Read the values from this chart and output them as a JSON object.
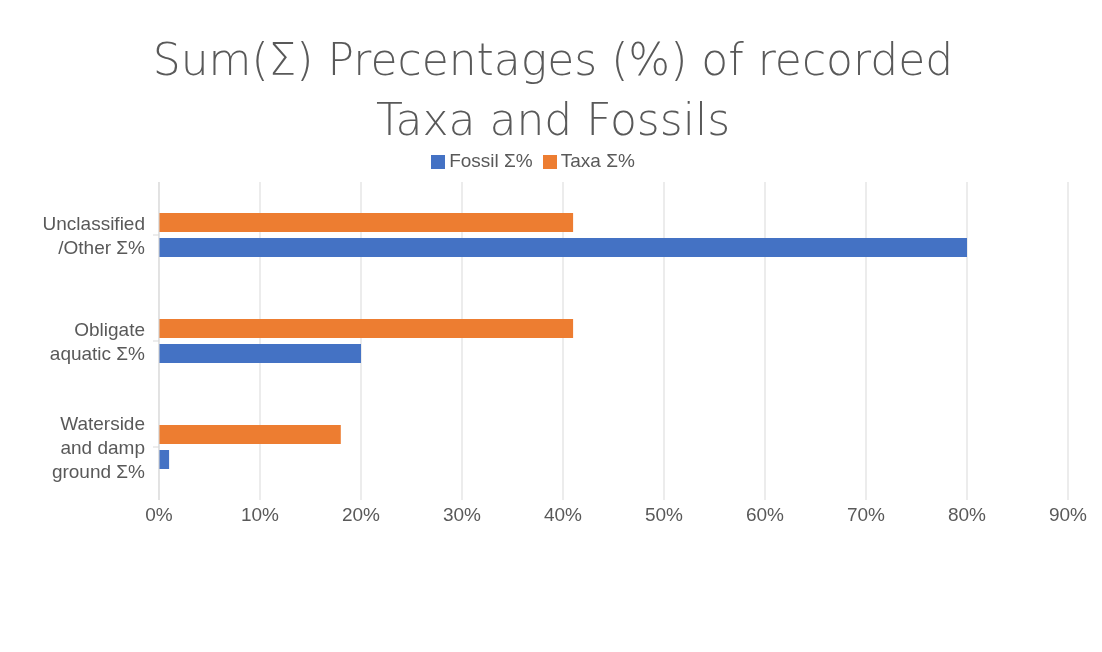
{
  "chart_data": {
    "type": "bar",
    "orientation": "horizontal",
    "title": "Sum(Σ) Precentages (%) of recorded Taxa and Fossils",
    "categories": [
      "Unclassified /Other Σ%",
      "Obligate aquatic Σ%",
      "Waterside and damp ground Σ%"
    ],
    "series": [
      {
        "name": "Taxa Σ%",
        "color": "#ed7d31",
        "values": [
          41,
          41,
          18
        ]
      },
      {
        "name": "Fossil Σ%",
        "color": "#4472c4",
        "values": [
          80,
          20,
          1
        ]
      }
    ],
    "xlim": [
      0,
      90
    ],
    "xticks": [
      {
        "value": 0,
        "label": "0%"
      },
      {
        "value": 10,
        "label": "10%"
      },
      {
        "value": 20,
        "label": "20%"
      },
      {
        "value": 30,
        "label": "30%"
      },
      {
        "value": 40,
        "label": "40%"
      },
      {
        "value": 50,
        "label": "50%"
      },
      {
        "value": 60,
        "label": "60%"
      },
      {
        "value": 70,
        "label": "70%"
      },
      {
        "value": 80,
        "label": "80%"
      },
      {
        "value": 90,
        "label": "90%"
      }
    ],
    "grid": "x",
    "legend": "top"
  }
}
